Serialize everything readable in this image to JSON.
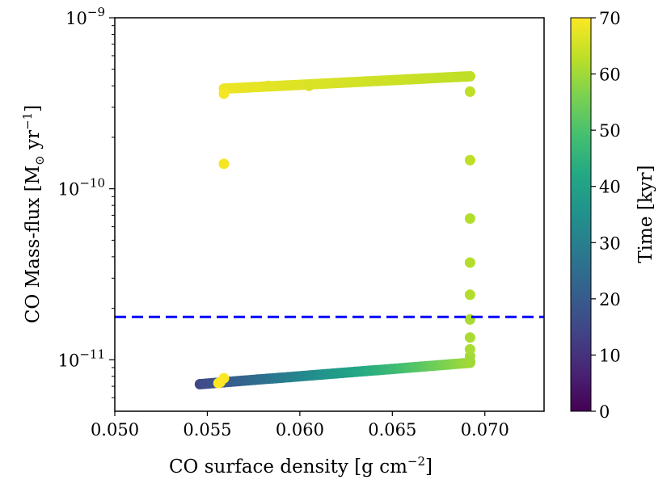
{
  "chart_data": {
    "type": "scatter",
    "title": "",
    "xlabel": "CO surface density [g cm",
    "xlabel_sup": "−2",
    "xlabel_end": "]",
    "ylabel": "CO Mass-flux [M",
    "ylabel_sub": "⊙",
    "ylabel_mid": " yr",
    "ylabel_sup": "−1",
    "ylabel_end": "]",
    "xlim": [
      0.05,
      0.0732
    ],
    "ylim": [
      5e-12,
      1e-09
    ],
    "yscale": "log",
    "x_ticks": [
      {
        "value": 0.05,
        "label": "0.050"
      },
      {
        "value": 0.055,
        "label": "0.055"
      },
      {
        "value": 0.06,
        "label": "0.060"
      },
      {
        "value": 0.065,
        "label": "0.065"
      },
      {
        "value": 0.07,
        "label": "0.070"
      }
    ],
    "y_ticks": [
      {
        "value": 1e-11,
        "base": "10",
        "exp": "−11"
      },
      {
        "value": 1e-10,
        "base": "10",
        "exp": "−10"
      },
      {
        "value": 1e-09,
        "base": "10",
        "exp": "−9"
      }
    ],
    "threshold_line": {
      "y": 1.78e-11,
      "color": "#0000ff",
      "style": "dashed"
    },
    "colorbar": {
      "label": "Time [kyr]",
      "range": [
        0,
        70
      ],
      "ticks": [
        "0",
        "10",
        "20",
        "30",
        "40",
        "50",
        "60",
        "70"
      ],
      "colormap": "viridis"
    },
    "series": [
      {
        "name": "lower branch",
        "x_start": 0.0546,
        "x_end": 0.0692,
        "y_start": 7.2e-12,
        "y_end": 9.6e-12,
        "t_start": 15,
        "t_end": 60,
        "count": 90
      },
      {
        "name": "vertical jump",
        "x": 0.0692,
        "y": [
          9.8e-12,
          1.05e-11,
          1.15e-11,
          1.35e-11,
          1.72e-11,
          2.4e-11,
          3.7e-11,
          6.7e-11,
          1.47e-10,
          3.7e-10
        ],
        "t": [
          60,
          60,
          61,
          61,
          61,
          62,
          62,
          62,
          63,
          63
        ]
      },
      {
        "name": "upper branch",
        "x_start": 0.0692,
        "x_end": 0.0559,
        "y_start": 4.55e-10,
        "y_end": 3.85e-10,
        "t_start": 63,
        "t_end": 68,
        "count": 90
      },
      {
        "name": "return points",
        "points": [
          {
            "x": 0.0559,
            "y": 3.6e-10,
            "t": 69
          },
          {
            "x": 0.0559,
            "y": 1.4e-10,
            "t": 69
          },
          {
            "x": 0.0605,
            "y": 4e-10,
            "t": 66
          },
          {
            "x": 0.0583,
            "y": 4e-10,
            "t": 67
          },
          {
            "x": 0.0559,
            "y": 7.8e-12,
            "t": 70
          },
          {
            "x": 0.0557,
            "y": 7.4e-12,
            "t": 70
          },
          {
            "x": 0.0556,
            "y": 7.3e-12,
            "t": 70
          }
        ]
      }
    ]
  }
}
